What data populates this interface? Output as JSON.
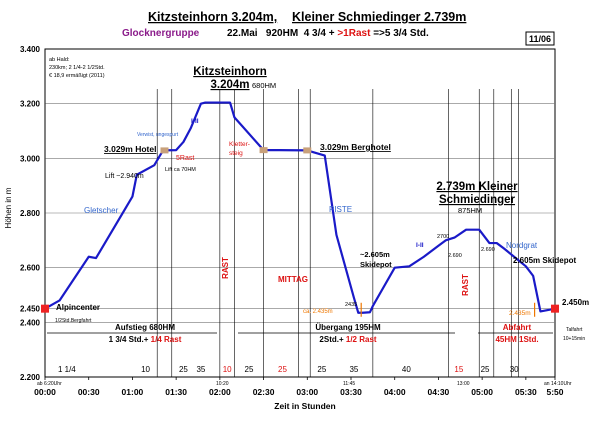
{
  "header": {
    "title_part1": "Kitzsteinhorn 3.204m,",
    "title_part2": "Kleiner Schmiedinger 2.739m",
    "subtitle_group": "Glocknergruppe",
    "subtitle_info": "22.Mai   920HM  4 3/4 + ",
    "subtitle_rast": ">1Rast",
    "subtitle_end": " =>5 3/4 Std.",
    "badge": "11/06"
  },
  "info_note": [
    "ab Hald:",
    "230km; 2 1/4-2 1/2Std.",
    "€ 18,9  ermäßigt (2011)"
  ],
  "colors": {
    "line": "#1a1ac8",
    "axis": "#000000",
    "grid": "#777777",
    "red": "#dd1111",
    "purple": "#8a1a8a",
    "blue_label": "#3366cc",
    "orange": "#ee7700",
    "marker_red": "#ee2222",
    "marker_tan": "#c8a07a"
  },
  "chart_data": {
    "type": "line",
    "xlabel": "Zeit in Stunden",
    "ylabel": "Höhen in m",
    "xlim_minutes": [
      0,
      350
    ],
    "ylim": [
      2200,
      3400
    ],
    "x_ticks": [
      "00:00",
      "00:30",
      "01:00",
      "01:30",
      "02:00",
      "02:30",
      "03:00",
      "03:30",
      "04:00",
      "04:30",
      "05:00",
      "05:30",
      "5:50"
    ],
    "x_tick_minutes": [
      0,
      30,
      60,
      90,
      120,
      150,
      180,
      210,
      240,
      270,
      300,
      330,
      350
    ],
    "y_ticks": [
      "2.200",
      "2.400",
      "2.450",
      "2.600",
      "2.800",
      "3.000",
      "3.200",
      "3.400"
    ],
    "y_tick_values": [
      2200,
      2400,
      2450,
      2600,
      2800,
      3000,
      3200,
      3400
    ],
    "series": [
      {
        "points_minutes": [
          0,
          10,
          30,
          35,
          60,
          63,
          75,
          80,
          82,
          90,
          95,
          100,
          107,
          110,
          115,
          120,
          127,
          130,
          150,
          161,
          180,
          192,
          200,
          212,
          215,
          218,
          223,
          225,
          240,
          250,
          260,
          270,
          275,
          281,
          289,
          296,
          298,
          305,
          310,
          315,
          330,
          335,
          340,
          345,
          350
        ],
        "points_m": [
          2450,
          2480,
          2640,
          2635,
          2860,
          2940,
          2975,
          3020,
          3029,
          3030,
          3060,
          3110,
          3200,
          3204,
          3204,
          3204,
          3204,
          3150,
          3030,
          3030,
          3029,
          3010,
          2720,
          2490,
          2435,
          2435,
          2437,
          2460,
          2600,
          2605,
          2640,
          2680,
          2700,
          2710,
          2739,
          2739,
          2739,
          2690,
          2690,
          2670,
          2605,
          2570,
          2440,
          2445,
          2450
        ]
      }
    ],
    "vertical_lines_minutes": [
      0,
      77,
      87,
      120,
      130,
      150,
      174,
      182,
      225,
      277,
      298,
      308,
      320,
      325
    ],
    "vertical_labels": [
      {
        "text": "RAST",
        "minute": 125
      },
      {
        "text": "RAST",
        "minute": 300
      }
    ],
    "break_label": "MITTAG",
    "peak_labels": [
      {
        "text": "Kitzsteinhorn",
        "sub": "3.204m",
        "hm": "680HM"
      },
      {
        "text": "2.739m Kleiner",
        "sub": "Schmiedinger",
        "hm": "875HM"
      }
    ],
    "annotations": [
      {
        "text": "3.029m Hotel"
      },
      {
        "text": "5Rast"
      },
      {
        "text": "Lift ca 70HM"
      },
      {
        "text": "Lift ~2.940m"
      },
      {
        "text": "Gletscher"
      },
      {
        "text": "I-II"
      },
      {
        "text": "Verwist, ungespurt"
      },
      {
        "text": "Kletter-"
      },
      {
        "text": "steig"
      },
      {
        "text": "3.029m Berghotel"
      },
      {
        "text": "PISTE"
      },
      {
        "text": "ca. 2.435m"
      },
      {
        "text": "2435"
      },
      {
        "text": "~2.605m"
      },
      {
        "text": "Skidepot"
      },
      {
        "text": "2700"
      },
      {
        "text": "2.690"
      },
      {
        "text": "2.690"
      },
      {
        "text": "Nordgrat"
      },
      {
        "text": "2.605m Skidepot"
      },
      {
        "text": "2.435m"
      },
      {
        "text": "2.450m"
      },
      {
        "text": "Alpincenter"
      },
      {
        "text": "1/2Std.Bergfahrt"
      },
      {
        "text": "Talfahrt"
      },
      {
        "text": "10+15min"
      },
      {
        "text": "I-II"
      }
    ],
    "segments": [
      {
        "label1": "Aufstieg 680HM",
        "label2": "1 3/4 Std.+ ",
        "label2_red": "1/4 Rast"
      },
      {
        "label1": "Übergang 195HM",
        "label2": "2Std.+ ",
        "label2_red": "1/2 Rast"
      },
      {
        "label1": "Abfahrt",
        "label2": "45HM 1Std."
      }
    ],
    "durations": [
      "1 1/4",
      "10",
      "25",
      "35",
      "10",
      "25",
      "25",
      "25",
      "35",
      "40",
      "15",
      "25",
      "30"
    ],
    "time_marks": [
      "ab 6:20Uhr",
      "10:20",
      "11:45",
      "13:00",
      "an 14:10Uhr"
    ]
  }
}
